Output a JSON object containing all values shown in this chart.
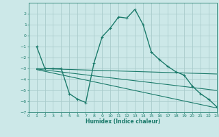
{
  "xlabel": "Humidex (Indice chaleur)",
  "background_color": "#cce8e8",
  "grid_color": "#aacccc",
  "line_color": "#1a7a6a",
  "xlim": [
    0,
    23
  ],
  "ylim": [
    -7,
    3
  ],
  "yticks": [
    -7,
    -6,
    -5,
    -4,
    -3,
    -2,
    -1,
    0,
    1,
    2
  ],
  "xticks": [
    0,
    1,
    2,
    3,
    4,
    5,
    6,
    7,
    8,
    9,
    10,
    11,
    12,
    13,
    14,
    15,
    16,
    17,
    18,
    19,
    20,
    21,
    22,
    23
  ],
  "series": [
    [
      1,
      -1
    ],
    [
      2,
      -3
    ],
    [
      3,
      -3
    ],
    [
      4,
      -3
    ],
    [
      5,
      -5.3
    ],
    [
      6,
      -5.8
    ],
    [
      7,
      -6.1
    ],
    [
      8,
      -2.5
    ],
    [
      9,
      -0.1
    ],
    [
      10,
      0.7
    ],
    [
      11,
      1.7
    ],
    [
      12,
      1.6
    ],
    [
      13,
      2.4
    ],
    [
      14,
      1.0
    ],
    [
      15,
      -1.5
    ],
    [
      16,
      -2.2
    ],
    [
      17,
      -2.8
    ],
    [
      18,
      -3.3
    ],
    [
      19,
      -3.6
    ],
    [
      20,
      -4.6
    ],
    [
      21,
      -5.3
    ],
    [
      22,
      -5.8
    ],
    [
      23,
      -6.5
    ]
  ],
  "line2": [
    [
      1,
      -3.0
    ],
    [
      23,
      -3.5
    ]
  ],
  "line3": [
    [
      1,
      -3.1
    ],
    [
      23,
      -6.6
    ]
  ],
  "line4": [
    [
      1,
      -3.05
    ],
    [
      23,
      -5.0
    ]
  ]
}
